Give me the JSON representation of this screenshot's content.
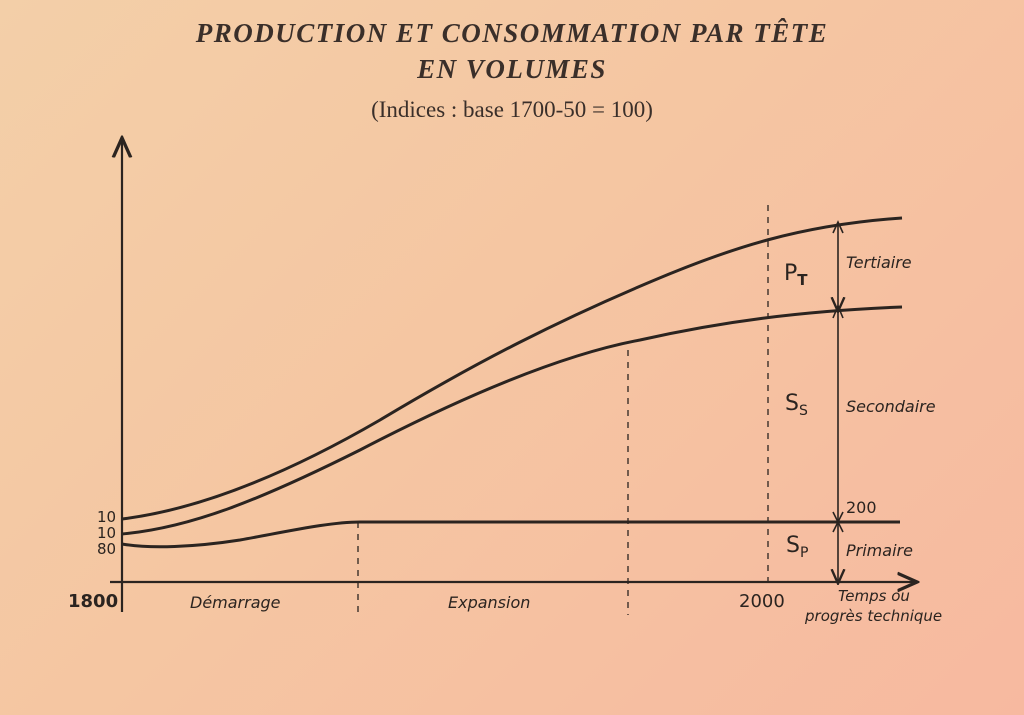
{
  "chart_data": {
    "type": "line",
    "title": "PRODUCTION ET CONSOMMATION PAR TÊTE",
    "title_line2": "EN VOLUMES",
    "subtitle": "(Indices : base 1700-50 = 100)",
    "x_start_label": "1800",
    "x_marker_label": "2000",
    "xlabel_line1": "Temps ou",
    "xlabel_line2": "progrès technique",
    "phases": [
      "Démarrage",
      "Expansion"
    ],
    "start_values": [
      "10",
      "10",
      "80"
    ],
    "level_label": "200",
    "series": [
      {
        "name": "Sp",
        "values": [
          80,
          80,
          95,
          120,
          200,
          200,
          200,
          200,
          200,
          200
        ]
      },
      {
        "name": "Ss",
        "values": [
          90,
          95,
          140,
          240,
          400,
          640,
          910,
          1150,
          1280,
          1340
        ]
      },
      {
        "name": "Pt",
        "values": [
          100,
          110,
          160,
          300,
          500,
          780,
          1100,
          1400,
          1620,
          1700
        ]
      }
    ],
    "x": [
      1800,
      1825,
      1850,
      1875,
      1900,
      1925,
      1950,
      1975,
      2000,
      2030
    ],
    "bands": [
      {
        "symbol_main": "P",
        "symbol_sub": "T",
        "name": "Tertiaire"
      },
      {
        "symbol_main": "S",
        "symbol_sub": "S",
        "name": "Secondaire"
      },
      {
        "symbol_main": "S",
        "symbol_sub": "P",
        "name": "Primaire"
      }
    ],
    "grid": false
  }
}
